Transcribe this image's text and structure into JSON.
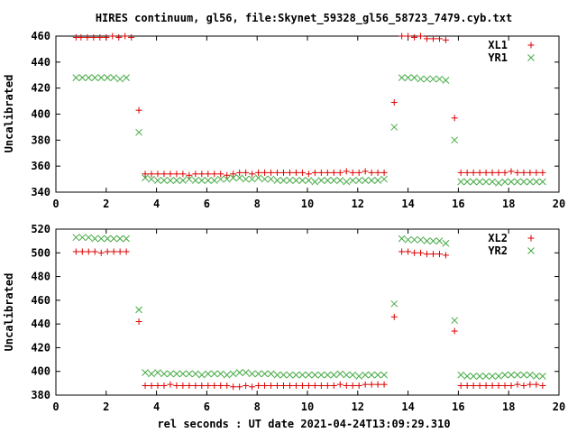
{
  "chart_data": [
    {
      "type": "scatter",
      "title": "HIRES continuum, gl56, file:Skynet_59328_gl56_58723_7479.cyb.txt",
      "ylabel": "Uncalibrated",
      "xlabel": "",
      "xlim": [
        0,
        20
      ],
      "ylim": [
        340,
        460
      ],
      "xticks": [
        0,
        2,
        4,
        6,
        8,
        10,
        12,
        14,
        16,
        18,
        20
      ],
      "yticks": [
        340,
        360,
        380,
        400,
        420,
        440,
        460
      ],
      "grid": false,
      "legend_position": "top-right",
      "series": [
        {
          "name": "XL1",
          "marker": "plus",
          "color": "#dd0000",
          "x": [
            0.8,
            1.0,
            1.25,
            1.5,
            1.75,
            2.0,
            2.25,
            2.5,
            2.75,
            3.0,
            3.3,
            3.55,
            3.8,
            4.05,
            4.3,
            4.55,
            4.8,
            5.05,
            5.3,
            5.55,
            5.8,
            6.05,
            6.3,
            6.55,
            6.8,
            7.05,
            7.3,
            7.55,
            7.8,
            8.05,
            8.3,
            8.55,
            8.8,
            9.05,
            9.3,
            9.55,
            9.8,
            10.05,
            10.3,
            10.55,
            10.8,
            11.05,
            11.3,
            11.55,
            11.8,
            12.05,
            12.3,
            12.55,
            12.8,
            13.05,
            13.45,
            13.75,
            14.0,
            14.25,
            14.5,
            14.75,
            15.0,
            15.25,
            15.5,
            15.85,
            16.1,
            16.35,
            16.6,
            16.85,
            17.1,
            17.35,
            17.6,
            17.85,
            18.1,
            18.35,
            18.6,
            18.85,
            19.1,
            19.35
          ],
          "y": [
            459,
            459,
            459,
            459,
            459,
            459,
            460,
            459,
            460,
            459,
            403,
            354,
            354,
            354,
            354,
            354,
            354,
            354,
            353,
            354,
            354,
            354,
            354,
            354,
            353,
            354,
            355,
            355,
            354,
            355,
            355,
            355,
            355,
            355,
            355,
            355,
            355,
            354,
            355,
            355,
            355,
            355,
            355,
            356,
            355,
            355,
            356,
            355,
            355,
            355,
            409,
            460,
            460,
            459,
            460,
            458,
            458,
            458,
            457,
            397,
            355,
            355,
            355,
            355,
            355,
            355,
            355,
            355,
            356,
            355,
            355,
            355,
            355,
            355
          ]
        },
        {
          "name": "YR1",
          "marker": "cross",
          "color": "#44aa44",
          "x": [
            0.8,
            1.05,
            1.3,
            1.55,
            1.8,
            2.05,
            2.3,
            2.55,
            2.8,
            3.3,
            3.55,
            3.8,
            4.05,
            4.3,
            4.55,
            4.8,
            5.05,
            5.3,
            5.55,
            5.8,
            6.05,
            6.3,
            6.55,
            6.8,
            7.05,
            7.3,
            7.55,
            7.8,
            8.05,
            8.3,
            8.55,
            8.8,
            9.05,
            9.3,
            9.55,
            9.8,
            10.05,
            10.3,
            10.55,
            10.8,
            11.05,
            11.3,
            11.55,
            11.8,
            12.05,
            12.3,
            12.55,
            12.8,
            13.05,
            13.45,
            13.75,
            14.0,
            14.25,
            14.5,
            14.75,
            15.0,
            15.25,
            15.5,
            15.85,
            16.1,
            16.35,
            16.6,
            16.85,
            17.1,
            17.35,
            17.6,
            17.85,
            18.1,
            18.35,
            18.6,
            18.85,
            19.1,
            19.35
          ],
          "y": [
            428,
            428,
            428,
            428,
            428,
            428,
            428,
            427,
            428,
            386,
            351,
            350,
            349,
            349,
            349,
            349,
            349,
            350,
            349,
            349,
            349,
            349,
            350,
            350,
            351,
            351,
            350,
            350,
            351,
            350,
            350,
            349,
            349,
            349,
            349,
            349,
            349,
            348,
            349,
            349,
            349,
            349,
            348,
            349,
            349,
            349,
            349,
            349,
            350,
            390,
            428,
            428,
            428,
            427,
            427,
            427,
            427,
            426,
            380,
            348,
            348,
            348,
            348,
            348,
            348,
            347,
            348,
            348,
            348,
            348,
            348,
            348,
            348
          ]
        }
      ]
    },
    {
      "type": "scatter",
      "title": "",
      "ylabel": "Uncalibrated",
      "xlabel": "rel seconds : UT date 2021-04-24T13:09:29.310",
      "xlim": [
        0,
        20
      ],
      "ylim": [
        380,
        520
      ],
      "xticks": [
        0,
        2,
        4,
        6,
        8,
        10,
        12,
        14,
        16,
        18,
        20
      ],
      "yticks": [
        380,
        400,
        420,
        440,
        460,
        480,
        500,
        520
      ],
      "grid": false,
      "legend_position": "top-right",
      "series": [
        {
          "name": "XL2",
          "marker": "plus",
          "color": "#dd0000",
          "x": [
            0.8,
            1.05,
            1.3,
            1.55,
            1.8,
            2.05,
            2.3,
            2.55,
            2.8,
            3.3,
            3.55,
            3.8,
            4.05,
            4.3,
            4.55,
            4.8,
            5.05,
            5.3,
            5.55,
            5.8,
            6.05,
            6.3,
            6.55,
            6.8,
            7.05,
            7.3,
            7.55,
            7.8,
            8.05,
            8.3,
            8.55,
            8.8,
            9.05,
            9.3,
            9.55,
            9.8,
            10.05,
            10.3,
            10.55,
            10.8,
            11.05,
            11.3,
            11.55,
            11.8,
            12.05,
            12.3,
            12.55,
            12.8,
            13.05,
            13.45,
            13.75,
            14.0,
            14.25,
            14.5,
            14.75,
            15.0,
            15.25,
            15.5,
            15.85,
            16.1,
            16.35,
            16.6,
            16.85,
            17.1,
            17.35,
            17.6,
            17.85,
            18.1,
            18.35,
            18.6,
            18.85,
            19.1,
            19.35
          ],
          "y": [
            501,
            501,
            501,
            501,
            500,
            501,
            501,
            501,
            501,
            442,
            388,
            388,
            388,
            388,
            389,
            388,
            388,
            388,
            388,
            388,
            388,
            388,
            388,
            388,
            387,
            387,
            388,
            387,
            388,
            388,
            388,
            388,
            388,
            388,
            388,
            388,
            388,
            388,
            388,
            388,
            388,
            389,
            388,
            388,
            388,
            389,
            389,
            389,
            389,
            446,
            501,
            501,
            500,
            500,
            499,
            499,
            499,
            498,
            434,
            388,
            388,
            388,
            388,
            388,
            388,
            388,
            388,
            388,
            389,
            388,
            389,
            389,
            388
          ]
        },
        {
          "name": "YR2",
          "marker": "cross",
          "color": "#44aa44",
          "x": [
            0.8,
            1.05,
            1.3,
            1.55,
            1.8,
            2.05,
            2.3,
            2.55,
            2.8,
            3.3,
            3.55,
            3.8,
            4.05,
            4.3,
            4.55,
            4.8,
            5.05,
            5.3,
            5.55,
            5.8,
            6.05,
            6.3,
            6.55,
            6.8,
            7.05,
            7.3,
            7.55,
            7.8,
            8.05,
            8.3,
            8.55,
            8.8,
            9.05,
            9.3,
            9.55,
            9.8,
            10.05,
            10.3,
            10.55,
            10.8,
            11.05,
            11.3,
            11.55,
            11.8,
            12.05,
            12.3,
            12.55,
            12.8,
            13.05,
            13.45,
            13.75,
            14.0,
            14.25,
            14.5,
            14.75,
            15.0,
            15.25,
            15.5,
            15.85,
            16.1,
            16.35,
            16.6,
            16.85,
            17.1,
            17.35,
            17.6,
            17.85,
            18.1,
            18.35,
            18.6,
            18.85,
            19.1,
            19.35
          ],
          "y": [
            513,
            513,
            513,
            512,
            512,
            512,
            512,
            512,
            512,
            452,
            399,
            398,
            399,
            398,
            398,
            398,
            398,
            398,
            398,
            397,
            398,
            398,
            398,
            397,
            398,
            399,
            399,
            398,
            398,
            398,
            398,
            397,
            397,
            397,
            397,
            397,
            397,
            397,
            397,
            397,
            397,
            398,
            397,
            397,
            396,
            397,
            397,
            397,
            397,
            457,
            512,
            511,
            511,
            511,
            510,
            510,
            510,
            508,
            443,
            397,
            396,
            396,
            396,
            396,
            396,
            396,
            397,
            397,
            397,
            397,
            397,
            396,
            396
          ]
        }
      ]
    }
  ]
}
